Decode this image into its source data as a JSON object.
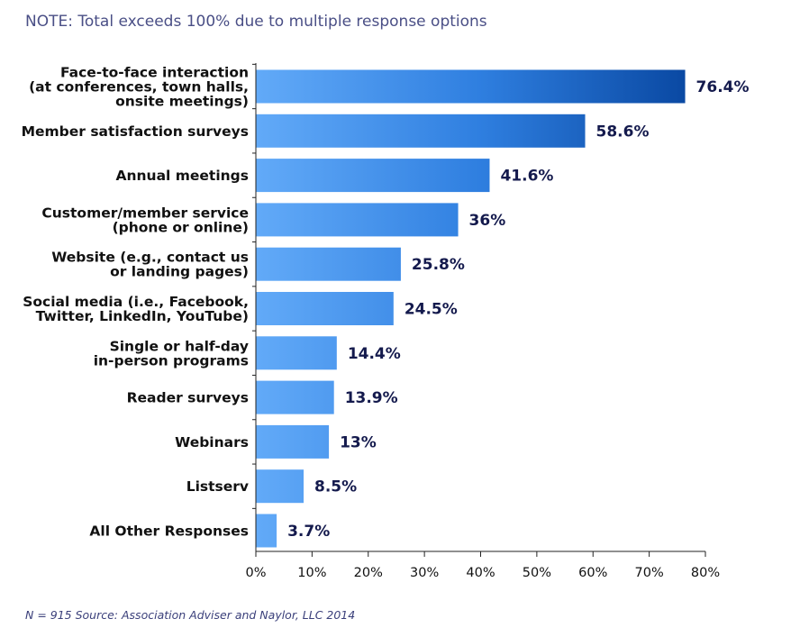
{
  "note": "NOTE: Total exceeds 100% due to multiple response options",
  "footer": "N = 915 Source: Association Adviser and Naylor, LLC 2014",
  "colors": {
    "bar_light": "#62aaf8",
    "bar_mid": "#2f7fe0",
    "bar_dark": "#0a49a3",
    "value_text": "#141a4d",
    "axis": "#222222"
  },
  "chart_data": {
    "type": "bar",
    "orientation": "horizontal",
    "categories": [
      [
        "Face-to-face interaction",
        "(at conferences, town halls,",
        "onsite meetings)"
      ],
      [
        "Member satisfaction surveys"
      ],
      [
        "Annual meetings"
      ],
      [
        "Customer/member service",
        "(phone or online)"
      ],
      [
        "Website (e.g., contact us",
        "or landing pages)"
      ],
      [
        "Social media (i.e., Facebook,",
        "Twitter, LinkedIn, YouTube)"
      ],
      [
        "Single or half-day",
        "in-person programs"
      ],
      [
        "Reader surveys"
      ],
      [
        "Webinars"
      ],
      [
        "Listserv"
      ],
      [
        "All Other Responses"
      ]
    ],
    "values": [
      76.4,
      58.6,
      41.6,
      36,
      25.8,
      24.5,
      14.4,
      13.9,
      13,
      8.5,
      3.7
    ],
    "value_labels": [
      "76.4%",
      "58.6%",
      "41.6%",
      "36%",
      "25.8%",
      "24.5%",
      "14.4%",
      "13.9%",
      "13%",
      "8.5%",
      "3.7%"
    ],
    "xlim": [
      0,
      80
    ],
    "xticks": [
      "0%",
      "10%",
      "20%",
      "30%",
      "40%",
      "50%",
      "60%",
      "70%",
      "80%"
    ],
    "grid": false,
    "legend": "none"
  }
}
